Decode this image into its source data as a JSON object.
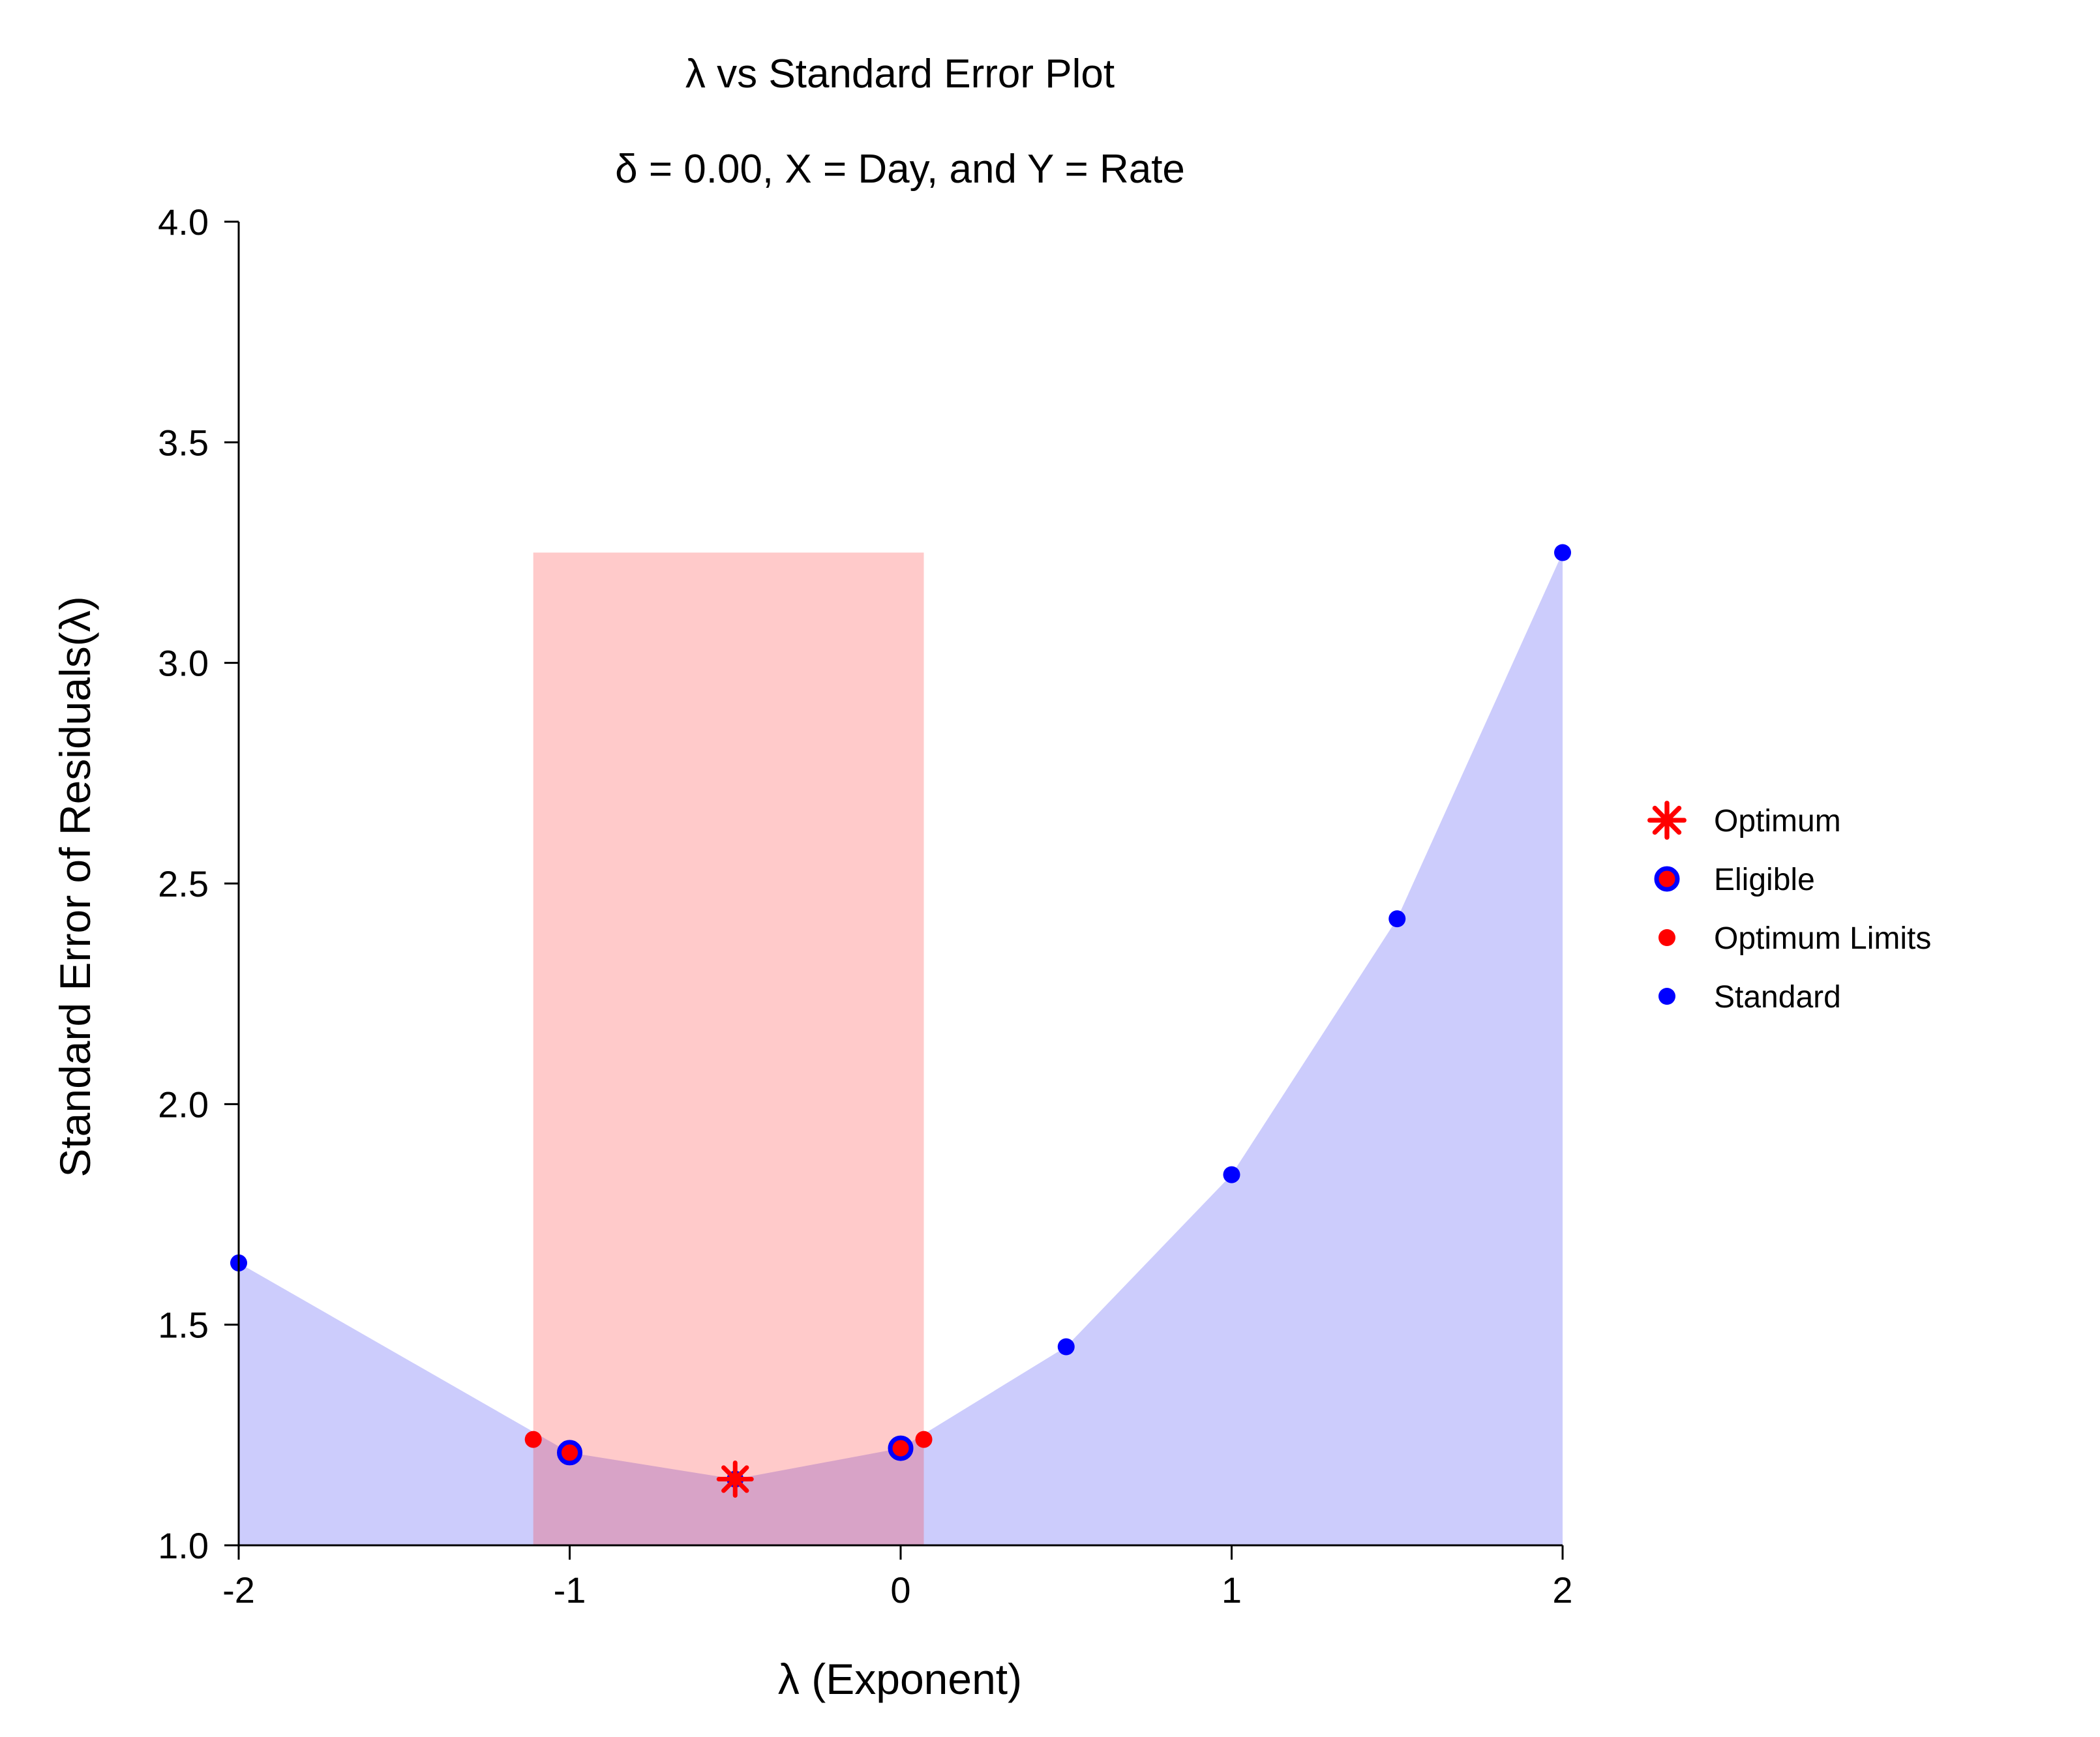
{
  "chart_data": {
    "type": "scatter",
    "title": "λ vs Standard Error Plot",
    "subtitle": "δ = 0.00, X = Day, and Y = Rate",
    "xlabel": "λ (Exponent)",
    "ylabel": "Standard Error of Residuals(λ)",
    "xlim": [
      -2,
      2
    ],
    "ylim": [
      1.0,
      4.0
    ],
    "x_ticks": [
      -2,
      -1,
      0,
      1,
      2
    ],
    "x_tick_labels": [
      "-2",
      "-1",
      "0",
      "1",
      "2"
    ],
    "y_ticks": [
      1.0,
      1.5,
      2.0,
      2.5,
      3.0,
      3.5,
      4.0
    ],
    "y_tick_labels": [
      "1.0",
      "1.5",
      "2.0",
      "2.5",
      "3.0",
      "3.5",
      "4.0"
    ],
    "grid": false,
    "legend_position": "right",
    "optimum_band": {
      "x_range": [
        -1.11,
        0.07
      ],
      "y_top": 3.25,
      "color": "#fcc9cb"
    },
    "area_color": "#ccccfc",
    "series": [
      {
        "name": "Optimum",
        "marker": "asterisk",
        "color": "#ff0000",
        "x": [
          -0.5
        ],
        "y": [
          1.15
        ]
      },
      {
        "name": "Eligible",
        "marker": "circle-ring",
        "color": "#0000ff",
        "fill": "#ff0000",
        "x": [
          -1,
          0
        ],
        "y": [
          1.21,
          1.22
        ]
      },
      {
        "name": "Optimum Limits",
        "marker": "dot",
        "color": "#ff0000",
        "x": [
          -1.11,
          0.07
        ],
        "y": [
          1.24,
          1.24
        ]
      },
      {
        "name": "Standard",
        "marker": "dot",
        "color": "#0000ff",
        "x": [
          -2,
          -1,
          -0.5,
          0,
          0.5,
          1,
          1.5,
          2
        ],
        "y": [
          1.64,
          1.21,
          1.15,
          1.22,
          1.45,
          1.84,
          2.42,
          3.25
        ]
      }
    ]
  }
}
